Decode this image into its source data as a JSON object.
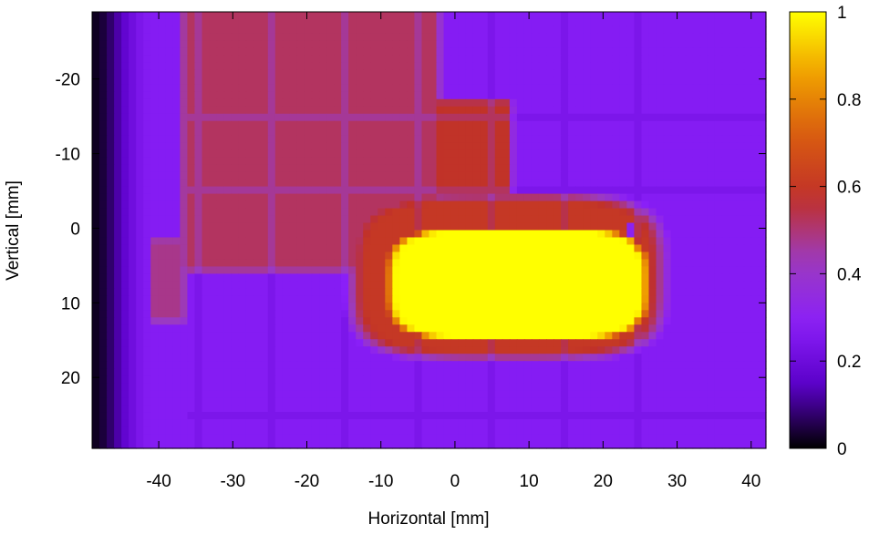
{
  "chart_data": {
    "type": "heatmap",
    "title": "",
    "xlabel": "Horizontal [mm]",
    "ylabel": "Vertical [mm]",
    "xlim": [
      -49,
      42
    ],
    "ylim": [
      -29,
      29.5
    ],
    "y_reversed": true,
    "x_ticks": [
      -40,
      -30,
      -20,
      -10,
      0,
      10,
      20,
      30,
      40
    ],
    "y_ticks": [
      -20,
      -10,
      0,
      10,
      20
    ],
    "colorbar": {
      "range": [
        0,
        1
      ],
      "ticks": [
        0,
        0.2,
        0.4,
        0.6,
        0.8,
        1
      ],
      "colormap": [
        "#000000",
        "#5a00c8",
        "#8a1ff8",
        "#9b3bc0",
        "#c0302a",
        "#d85a10",
        "#f0a000",
        "#ffff00"
      ]
    },
    "features": {
      "background_level": 0.25,
      "hot_core": {
        "x_center": 8.5,
        "y_center": 7.5,
        "half_width_x": 18.5,
        "half_width_y": 8,
        "level": 1.0
      },
      "halo": {
        "x_center": 7,
        "y_center": 6.5,
        "half_width_x": 22,
        "half_width_y": 11.5,
        "level": 0.6
      },
      "upper_band": {
        "x_range": [
          -36,
          -3
        ],
        "y_range": [
          -29,
          5
        ],
        "level": 0.52
      },
      "upper_right_arm": {
        "x_range": [
          -2,
          7
        ],
        "y_range": [
          -16.5,
          -5
        ],
        "level": 0.58
      },
      "left_stripe": {
        "x_range": [
          -40.5,
          -37
        ],
        "y_range": [
          2,
          12
        ],
        "level": 0.48
      },
      "left_dark_edge": {
        "x_range": [
          -49,
          -44
        ],
        "level": 0.05
      },
      "grid_pitch_mm": 10,
      "small_hole": {
        "x": 23.5,
        "y": 0,
        "level": 0.3
      }
    }
  }
}
